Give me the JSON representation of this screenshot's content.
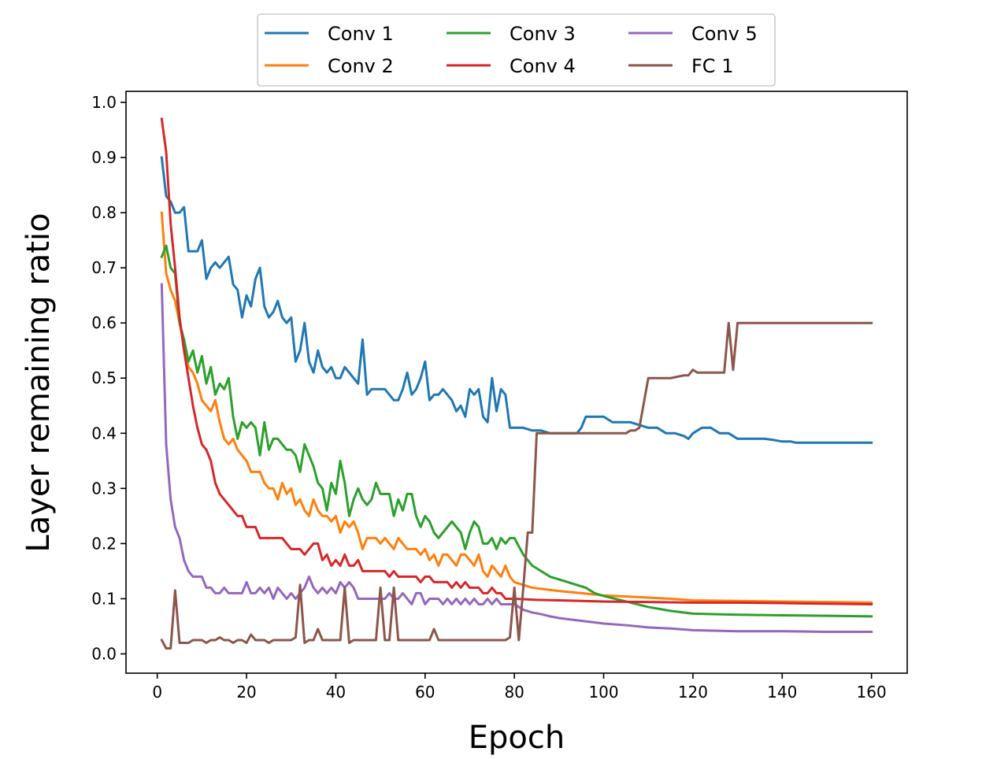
{
  "chart_data": {
    "type": "line",
    "title": "",
    "xlabel": "Epoch",
    "ylabel": "Layer remaining ratio",
    "xlim": [
      -7,
      168
    ],
    "ylim": [
      -0.035,
      1.02
    ],
    "xticks": [
      0,
      20,
      40,
      60,
      80,
      100,
      120,
      140,
      160
    ],
    "xtick_labels": [
      "0",
      "20",
      "40",
      "60",
      "80",
      "100",
      "120",
      "140",
      "160"
    ],
    "yticks": [
      0.0,
      0.1,
      0.2,
      0.3,
      0.4,
      0.5,
      0.6,
      0.7,
      0.8,
      0.9,
      1.0
    ],
    "ytick_labels": [
      "0.0",
      "0.1",
      "0.2",
      "0.3",
      "0.4",
      "0.5",
      "0.6",
      "0.7",
      "0.8",
      "0.9",
      "1.0"
    ],
    "grid": false,
    "legend": {
      "placement": "top-center-outside",
      "columns": 3
    },
    "series": [
      {
        "name": "Conv 1",
        "color": "#1f77b4",
        "x": [
          1,
          2,
          3,
          4,
          5,
          6,
          7,
          8,
          9,
          10,
          11,
          12,
          13,
          14,
          15,
          16,
          17,
          18,
          19,
          20,
          21,
          22,
          23,
          24,
          25,
          26,
          27,
          28,
          29,
          30,
          31,
          32,
          33,
          34,
          35,
          36,
          37,
          38,
          39,
          40,
          41,
          42,
          43,
          44,
          45,
          46,
          47,
          48,
          49,
          50,
          51,
          52,
          53,
          54,
          55,
          56,
          57,
          58,
          59,
          60,
          61,
          62,
          63,
          64,
          65,
          66,
          67,
          68,
          69,
          70,
          71,
          72,
          73,
          74,
          75,
          76,
          77,
          78,
          79,
          80,
          82,
          84,
          86,
          88,
          90,
          92,
          94,
          95,
          96,
          98,
          100,
          102,
          104,
          106,
          108,
          110,
          112,
          114,
          116,
          118,
          119,
          120,
          122,
          124,
          126,
          128,
          130,
          132,
          134,
          136,
          138,
          140,
          142,
          143,
          146,
          150,
          155,
          160
        ],
        "y": [
          0.9,
          0.83,
          0.82,
          0.8,
          0.8,
          0.81,
          0.73,
          0.73,
          0.73,
          0.75,
          0.68,
          0.7,
          0.71,
          0.7,
          0.71,
          0.72,
          0.67,
          0.66,
          0.61,
          0.65,
          0.63,
          0.68,
          0.7,
          0.63,
          0.61,
          0.62,
          0.64,
          0.61,
          0.6,
          0.61,
          0.53,
          0.55,
          0.6,
          0.53,
          0.51,
          0.55,
          0.52,
          0.51,
          0.52,
          0.5,
          0.5,
          0.52,
          0.51,
          0.5,
          0.49,
          0.57,
          0.47,
          0.48,
          0.48,
          0.48,
          0.48,
          0.47,
          0.46,
          0.46,
          0.48,
          0.51,
          0.47,
          0.48,
          0.5,
          0.53,
          0.46,
          0.47,
          0.47,
          0.48,
          0.47,
          0.46,
          0.44,
          0.45,
          0.43,
          0.48,
          0.47,
          0.48,
          0.43,
          0.42,
          0.5,
          0.44,
          0.48,
          0.47,
          0.41,
          0.41,
          0.41,
          0.405,
          0.405,
          0.4,
          0.4,
          0.4,
          0.4,
          0.41,
          0.43,
          0.43,
          0.43,
          0.42,
          0.42,
          0.42,
          0.415,
          0.41,
          0.41,
          0.4,
          0.4,
          0.395,
          0.39,
          0.4,
          0.41,
          0.41,
          0.4,
          0.4,
          0.39,
          0.39,
          0.39,
          0.39,
          0.388,
          0.385,
          0.385,
          0.383,
          0.383,
          0.383,
          0.383,
          0.383
        ]
      },
      {
        "name": "Conv 2",
        "color": "#ff7f0e",
        "x": [
          1,
          2,
          3,
          4,
          5,
          6,
          7,
          8,
          9,
          10,
          11,
          12,
          13,
          14,
          15,
          16,
          17,
          18,
          19,
          20,
          21,
          22,
          23,
          24,
          25,
          26,
          27,
          28,
          29,
          30,
          31,
          32,
          33,
          34,
          35,
          36,
          37,
          38,
          39,
          40,
          41,
          42,
          43,
          44,
          45,
          46,
          47,
          48,
          49,
          50,
          51,
          52,
          53,
          54,
          55,
          56,
          57,
          58,
          59,
          60,
          61,
          62,
          63,
          64,
          65,
          66,
          67,
          68,
          69,
          70,
          71,
          72,
          73,
          74,
          75,
          76,
          77,
          78,
          79,
          80,
          82,
          84,
          86,
          88,
          90,
          95,
          100,
          105,
          110,
          115,
          120,
          130,
          140,
          150,
          160
        ],
        "y": [
          0.8,
          0.69,
          0.66,
          0.64,
          0.6,
          0.56,
          0.52,
          0.51,
          0.49,
          0.46,
          0.45,
          0.44,
          0.46,
          0.42,
          0.39,
          0.38,
          0.39,
          0.37,
          0.36,
          0.35,
          0.33,
          0.33,
          0.33,
          0.31,
          0.3,
          0.3,
          0.28,
          0.31,
          0.29,
          0.3,
          0.27,
          0.28,
          0.26,
          0.25,
          0.28,
          0.26,
          0.25,
          0.25,
          0.24,
          0.25,
          0.22,
          0.24,
          0.23,
          0.24,
          0.22,
          0.19,
          0.21,
          0.21,
          0.21,
          0.2,
          0.21,
          0.2,
          0.19,
          0.21,
          0.2,
          0.19,
          0.19,
          0.19,
          0.18,
          0.19,
          0.17,
          0.18,
          0.16,
          0.18,
          0.18,
          0.17,
          0.16,
          0.18,
          0.18,
          0.17,
          0.16,
          0.18,
          0.15,
          0.14,
          0.16,
          0.15,
          0.14,
          0.16,
          0.14,
          0.13,
          0.125,
          0.12,
          0.118,
          0.116,
          0.114,
          0.11,
          0.106,
          0.104,
          0.102,
          0.1,
          0.097,
          0.096,
          0.095,
          0.094,
          0.093
        ]
      },
      {
        "name": "Conv 3",
        "color": "#2ca02c",
        "x": [
          1,
          2,
          3,
          4,
          5,
          6,
          7,
          8,
          9,
          10,
          11,
          12,
          13,
          14,
          15,
          16,
          17,
          18,
          19,
          20,
          21,
          22,
          23,
          24,
          25,
          26,
          27,
          28,
          29,
          30,
          31,
          32,
          33,
          34,
          35,
          36,
          37,
          38,
          39,
          40,
          41,
          42,
          43,
          44,
          45,
          46,
          47,
          48,
          49,
          50,
          51,
          52,
          53,
          54,
          55,
          56,
          57,
          58,
          59,
          60,
          61,
          62,
          63,
          64,
          65,
          66,
          67,
          68,
          69,
          70,
          71,
          72,
          73,
          74,
          75,
          76,
          77,
          78,
          79,
          80,
          82,
          84,
          86,
          88,
          90,
          92,
          94,
          96,
          98,
          100,
          105,
          110,
          115,
          120,
          130,
          140,
          150,
          160
        ],
        "y": [
          0.72,
          0.74,
          0.7,
          0.69,
          0.6,
          0.57,
          0.53,
          0.55,
          0.51,
          0.54,
          0.49,
          0.52,
          0.47,
          0.49,
          0.48,
          0.5,
          0.43,
          0.39,
          0.42,
          0.41,
          0.42,
          0.41,
          0.36,
          0.42,
          0.37,
          0.39,
          0.39,
          0.38,
          0.37,
          0.37,
          0.36,
          0.33,
          0.38,
          0.36,
          0.34,
          0.31,
          0.3,
          0.26,
          0.31,
          0.29,
          0.35,
          0.31,
          0.25,
          0.28,
          0.3,
          0.28,
          0.27,
          0.28,
          0.31,
          0.29,
          0.29,
          0.29,
          0.25,
          0.28,
          0.26,
          0.29,
          0.29,
          0.25,
          0.23,
          0.25,
          0.24,
          0.22,
          0.21,
          0.22,
          0.23,
          0.24,
          0.23,
          0.22,
          0.19,
          0.22,
          0.24,
          0.23,
          0.2,
          0.2,
          0.21,
          0.19,
          0.21,
          0.2,
          0.21,
          0.21,
          0.18,
          0.16,
          0.15,
          0.14,
          0.135,
          0.13,
          0.125,
          0.12,
          0.11,
          0.105,
          0.095,
          0.085,
          0.078,
          0.073,
          0.071,
          0.07,
          0.069,
          0.068
        ]
      },
      {
        "name": "Conv 4",
        "color": "#d62728",
        "x": [
          1,
          2,
          3,
          4,
          5,
          6,
          7,
          8,
          9,
          10,
          11,
          12,
          13,
          14,
          15,
          16,
          17,
          18,
          19,
          20,
          21,
          22,
          23,
          24,
          25,
          26,
          27,
          28,
          29,
          30,
          31,
          32,
          33,
          34,
          35,
          36,
          37,
          38,
          39,
          40,
          41,
          42,
          43,
          44,
          45,
          46,
          47,
          48,
          49,
          50,
          51,
          52,
          53,
          54,
          55,
          56,
          57,
          58,
          59,
          60,
          61,
          62,
          63,
          64,
          65,
          66,
          67,
          68,
          69,
          70,
          71,
          72,
          73,
          74,
          75,
          76,
          77,
          78,
          79,
          80,
          85,
          90,
          95,
          100,
          110,
          120,
          130,
          140,
          150,
          160
        ],
        "y": [
          0.97,
          0.91,
          0.78,
          0.7,
          0.61,
          0.55,
          0.5,
          0.45,
          0.41,
          0.38,
          0.37,
          0.35,
          0.31,
          0.29,
          0.28,
          0.27,
          0.26,
          0.25,
          0.25,
          0.23,
          0.23,
          0.23,
          0.21,
          0.21,
          0.21,
          0.21,
          0.21,
          0.21,
          0.2,
          0.19,
          0.19,
          0.19,
          0.18,
          0.19,
          0.2,
          0.2,
          0.17,
          0.18,
          0.16,
          0.17,
          0.16,
          0.18,
          0.16,
          0.16,
          0.17,
          0.15,
          0.15,
          0.15,
          0.15,
          0.15,
          0.15,
          0.14,
          0.15,
          0.14,
          0.14,
          0.14,
          0.14,
          0.14,
          0.13,
          0.14,
          0.14,
          0.13,
          0.13,
          0.13,
          0.13,
          0.12,
          0.13,
          0.12,
          0.13,
          0.12,
          0.12,
          0.12,
          0.11,
          0.11,
          0.12,
          0.11,
          0.11,
          0.1,
          0.1,
          0.1,
          0.098,
          0.097,
          0.096,
          0.095,
          0.094,
          0.093,
          0.093,
          0.092,
          0.091,
          0.09
        ]
      },
      {
        "name": "Conv 5",
        "color": "#9467bd",
        "x": [
          1,
          2,
          3,
          4,
          5,
          6,
          7,
          8,
          9,
          10,
          11,
          12,
          13,
          14,
          15,
          16,
          17,
          18,
          19,
          20,
          21,
          22,
          23,
          24,
          25,
          26,
          27,
          28,
          29,
          30,
          31,
          32,
          33,
          34,
          35,
          36,
          37,
          38,
          39,
          40,
          41,
          42,
          43,
          44,
          45,
          46,
          47,
          48,
          49,
          50,
          51,
          52,
          53,
          54,
          55,
          56,
          57,
          58,
          59,
          60,
          61,
          62,
          63,
          64,
          65,
          66,
          67,
          68,
          69,
          70,
          71,
          72,
          73,
          74,
          75,
          76,
          77,
          78,
          79,
          80,
          82,
          84,
          86,
          88,
          90,
          95,
          100,
          105,
          110,
          115,
          120,
          130,
          140,
          150,
          160
        ],
        "y": [
          0.67,
          0.38,
          0.28,
          0.23,
          0.21,
          0.17,
          0.15,
          0.14,
          0.14,
          0.14,
          0.12,
          0.12,
          0.11,
          0.11,
          0.12,
          0.11,
          0.11,
          0.11,
          0.11,
          0.13,
          0.11,
          0.11,
          0.12,
          0.11,
          0.12,
          0.1,
          0.12,
          0.11,
          0.1,
          0.11,
          0.1,
          0.11,
          0.12,
          0.14,
          0.12,
          0.11,
          0.12,
          0.11,
          0.12,
          0.11,
          0.13,
          0.12,
          0.13,
          0.12,
          0.1,
          0.1,
          0.1,
          0.1,
          0.1,
          0.1,
          0.1,
          0.11,
          0.1,
          0.1,
          0.11,
          0.1,
          0.09,
          0.11,
          0.11,
          0.09,
          0.1,
          0.1,
          0.1,
          0.09,
          0.1,
          0.09,
          0.1,
          0.09,
          0.1,
          0.09,
          0.1,
          0.09,
          0.09,
          0.1,
          0.09,
          0.1,
          0.09,
          0.09,
          0.09,
          0.09,
          0.08,
          0.075,
          0.072,
          0.068,
          0.065,
          0.06,
          0.055,
          0.052,
          0.048,
          0.046,
          0.043,
          0.041,
          0.041,
          0.04,
          0.04
        ]
      },
      {
        "name": "FC 1",
        "color": "#8c564b",
        "x": [
          1,
          2,
          3,
          4,
          5,
          6,
          7,
          8,
          9,
          10,
          11,
          12,
          13,
          14,
          15,
          16,
          17,
          18,
          19,
          20,
          21,
          22,
          23,
          24,
          25,
          26,
          27,
          28,
          29,
          30,
          31,
          32,
          33,
          34,
          35,
          36,
          37,
          38,
          39,
          40,
          41,
          42,
          43,
          44,
          45,
          46,
          47,
          48,
          49,
          50,
          51,
          52,
          53,
          54,
          55,
          56,
          57,
          58,
          59,
          60,
          61,
          62,
          63,
          64,
          65,
          66,
          67,
          68,
          69,
          70,
          71,
          72,
          73,
          74,
          75,
          76,
          77,
          78,
          79,
          80,
          81,
          82,
          83,
          84,
          85,
          86,
          90,
          95,
          100,
          105,
          106,
          107,
          108,
          110,
          115,
          118,
          119,
          120,
          121,
          122,
          125,
          126,
          127,
          128,
          129,
          130,
          140,
          150,
          160
        ],
        "y": [
          0.025,
          0.01,
          0.01,
          0.115,
          0.02,
          0.02,
          0.02,
          0.025,
          0.025,
          0.025,
          0.02,
          0.025,
          0.025,
          0.03,
          0.025,
          0.025,
          0.02,
          0.025,
          0.025,
          0.02,
          0.035,
          0.025,
          0.025,
          0.025,
          0.02,
          0.025,
          0.025,
          0.025,
          0.025,
          0.025,
          0.03,
          0.125,
          0.02,
          0.025,
          0.025,
          0.045,
          0.025,
          0.025,
          0.025,
          0.025,
          0.025,
          0.12,
          0.02,
          0.025,
          0.025,
          0.025,
          0.025,
          0.025,
          0.025,
          0.12,
          0.025,
          0.025,
          0.12,
          0.025,
          0.025,
          0.025,
          0.025,
          0.025,
          0.025,
          0.025,
          0.025,
          0.045,
          0.025,
          0.025,
          0.025,
          0.025,
          0.025,
          0.025,
          0.025,
          0.025,
          0.025,
          0.025,
          0.025,
          0.025,
          0.025,
          0.025,
          0.025,
          0.025,
          0.03,
          0.12,
          0.025,
          0.12,
          0.22,
          0.22,
          0.4,
          0.4,
          0.4,
          0.4,
          0.4,
          0.4,
          0.405,
          0.405,
          0.41,
          0.5,
          0.5,
          0.505,
          0.505,
          0.515,
          0.51,
          0.51,
          0.51,
          0.51,
          0.51,
          0.6,
          0.515,
          0.6,
          0.6,
          0.6,
          0.6
        ]
      }
    ]
  }
}
